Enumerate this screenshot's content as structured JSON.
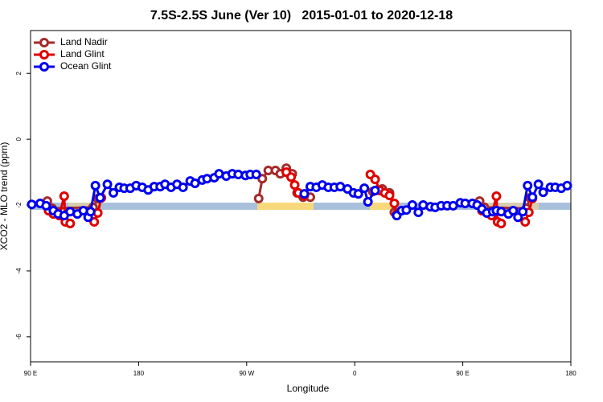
{
  "chart_data": {
    "type": "line",
    "title": "7.5S-2.5S June (Ver 10)   2015-01-01 to 2020-12-18",
    "x_label": "Longitude",
    "y_label": "XCO2 - MLO trend (ppm)",
    "xlim": [
      90,
      540
    ],
    "ylim": [
      -6.76,
      3.3
    ],
    "xticks": [
      {
        "value": 90,
        "label": "90 E"
      },
      {
        "value": 180,
        "label": "180"
      },
      {
        "value": 270,
        "label": "90 W"
      },
      {
        "value": 360,
        "label": "0"
      },
      {
        "value": 450,
        "label": "90 E"
      },
      {
        "value": 540,
        "label": "180"
      }
    ],
    "yticks": [
      -6,
      -4,
      -2,
      0,
      2
    ],
    "legend": "top-left",
    "series": [
      {
        "name": "Land Nadir",
        "color": "#a52a2a",
        "x": [
          104,
          108,
          142,
          146,
          null,
          280,
          283,
          288,
          294,
          298,
          303,
          308,
          312,
          317,
          323,
          null,
          375,
          379,
          383,
          389,
          393,
          null,
          464,
          468,
          503,
          506
        ],
        "values": [
          -1.88,
          -2.1,
          -2.07,
          -1.8,
          null,
          -1.8,
          -1.2,
          -0.95,
          -0.95,
          -1.05,
          -0.88,
          -1.05,
          -1.63,
          -1.76,
          -1.76,
          null,
          -1.59,
          -1.54,
          -1.51,
          -1.63,
          -2.22,
          null,
          -1.88,
          -2.07,
          -2.1,
          -1.78
        ]
      },
      {
        "name": "Land Glint",
        "color": "#e00000",
        "x": [
          105,
          109,
          114,
          118,
          119,
          123,
          null,
          143,
          146,
          149,
          null,
          303,
          307,
          310,
          313,
          318,
          null,
          373,
          377,
          381,
          385,
          389,
          393,
          395,
          null,
          466,
          470,
          474,
          478,
          479,
          482,
          null,
          502,
          505,
          508
        ],
        "values": [
          -2.17,
          -2.27,
          -2.32,
          -1.73,
          -2.51,
          -2.56,
          null,
          -2.51,
          -2.24,
          -1.78,
          null,
          -1.0,
          -1.15,
          -1.39,
          -1.63,
          -1.71,
          null,
          -1.07,
          -1.22,
          -1.56,
          -1.63,
          -1.71,
          -1.95,
          -2.27,
          null,
          -2.17,
          -2.24,
          -2.32,
          -1.73,
          -2.51,
          -2.56,
          null,
          -2.51,
          -2.22,
          -1.8
        ]
      },
      {
        "name": "Ocean Glint",
        "color": "#0000ee",
        "x": [
          91,
          98,
          103,
          109,
          113,
          118,
          123,
          129,
          134,
          138,
          140,
          144,
          148,
          154,
          159,
          164,
          168,
          173,
          178,
          183,
          188,
          193,
          198,
          202,
          207,
          212,
          217,
          223,
          227,
          233,
          237,
          243,
          247,
          253,
          258,
          263,
          269,
          273,
          278,
          null,
          318,
          323,
          328,
          333,
          338,
          343,
          348,
          354,
          359,
          363,
          368,
          371,
          377,
          null,
          395,
          399,
          403,
          408,
          413,
          417,
          423,
          427,
          432,
          437,
          442,
          448,
          452,
          458,
          462,
          466,
          470,
          475,
          478,
          482,
          488,
          492,
          496,
          500,
          504,
          508,
          513,
          517,
          523,
          527,
          532,
          537
        ],
        "values": [
          -1.98,
          -1.95,
          -2.02,
          -2.17,
          -2.27,
          -2.32,
          -2.2,
          -2.27,
          -2.17,
          -2.37,
          -2.2,
          -1.41,
          -1.78,
          -1.37,
          -1.63,
          -1.46,
          -1.49,
          -1.49,
          -1.41,
          -1.46,
          -1.54,
          -1.44,
          -1.44,
          -1.37,
          -1.46,
          -1.37,
          -1.46,
          -1.27,
          -1.34,
          -1.24,
          -1.2,
          -1.17,
          -1.05,
          -1.12,
          -1.05,
          -1.07,
          -1.1,
          -1.07,
          -1.07,
          null,
          -1.66,
          -1.44,
          -1.46,
          -1.39,
          -1.46,
          -1.46,
          -1.44,
          -1.51,
          -1.63,
          -1.66,
          -1.49,
          -1.9,
          -1.56,
          null,
          -2.32,
          -2.17,
          -2.15,
          -2.0,
          -2.22,
          -2.0,
          -2.05,
          -2.07,
          -2.02,
          -2.02,
          -2.02,
          -1.93,
          -1.95,
          -1.95,
          -2.0,
          -2.12,
          -2.24,
          -2.2,
          -2.17,
          -2.2,
          -2.27,
          -2.17,
          -2.37,
          -2.2,
          -1.41,
          -1.76,
          -1.37,
          -1.61,
          -1.46,
          -1.46,
          -1.49,
          -1.41
        ]
      }
    ]
  }
}
